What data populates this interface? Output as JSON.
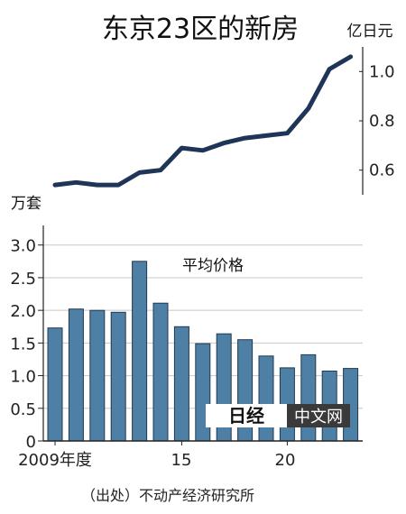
{
  "chart_data": [
    {
      "type": "line",
      "title": "东京23区的新房",
      "unit_label": "亿日元",
      "y_ticks": [
        "1.0",
        "0.8",
        "0.6"
      ],
      "ylim": [
        0.5,
        1.1
      ],
      "x": [
        2009,
        2010,
        2011,
        2012,
        2013,
        2014,
        2015,
        2016,
        2017,
        2018,
        2019,
        2020,
        2021,
        2022,
        2023
      ],
      "values": [
        0.54,
        0.55,
        0.54,
        0.54,
        0.59,
        0.6,
        0.69,
        0.68,
        0.71,
        0.73,
        0.74,
        0.75,
        0.85,
        1.01,
        1.06
      ],
      "colors": {
        "line": "#1e3558"
      }
    },
    {
      "type": "bar",
      "series_label": "平均价格",
      "unit_label": "万套",
      "y_ticks": [
        "3.0",
        "2.5",
        "2.0",
        "1.5",
        "1.0",
        "0.5",
        "0"
      ],
      "ylim": [
        0,
        3.3
      ],
      "x_ticks": [
        "2009年度",
        "15",
        "20"
      ],
      "categories": [
        2009,
        2010,
        2011,
        2012,
        2013,
        2014,
        2015,
        2016,
        2017,
        2018,
        2019,
        2020,
        2021,
        2022,
        2023
      ],
      "values": [
        1.73,
        2.02,
        2.0,
        1.97,
        2.75,
        2.11,
        1.75,
        1.49,
        1.64,
        1.55,
        1.3,
        1.12,
        1.32,
        1.07,
        1.11
      ],
      "colors": {
        "bar": "#4e7fa4",
        "bar_edge": "#22394f"
      }
    }
  ],
  "source_note": "（出处）不动产经济研究所",
  "watermark": {
    "logo": "日经",
    "label": "中文网"
  }
}
